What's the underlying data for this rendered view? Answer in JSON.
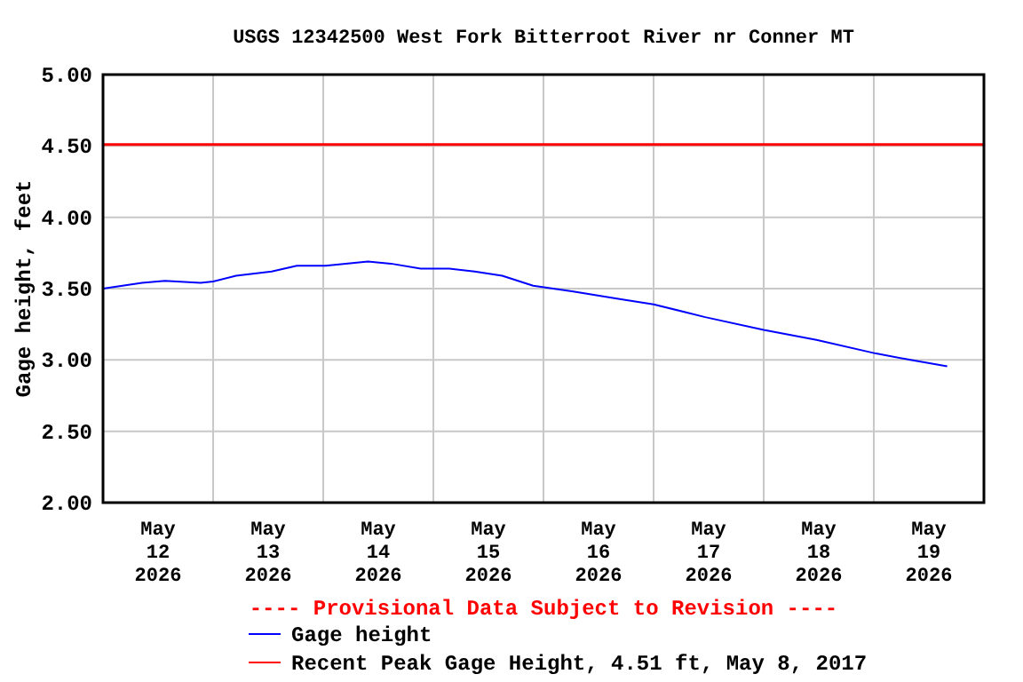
{
  "chart_data": {
    "type": "line",
    "title": "USGS 12342500 West Fork Bitterroot River nr Conner MT",
    "ylabel": "Gage height, feet",
    "annotations": [
      "---- Provisional Data Subject to Revision ----"
    ],
    "xlim": [
      "2026-05-12T00:00",
      "2026-05-20T00:00"
    ],
    "xticks": [
      {
        "value": "2026-05-12T12:00",
        "label": "May\n12\n2026"
      },
      {
        "value": "2026-05-13T00:00",
        "label": null
      },
      {
        "value": "2026-05-13T12:00",
        "label": "May\n13\n2026"
      },
      {
        "value": "2026-05-14T00:00",
        "label": null
      },
      {
        "value": "2026-05-14T12:00",
        "label": "May\n14\n2026"
      },
      {
        "value": "2026-05-15T00:00",
        "label": null
      },
      {
        "value": "2026-05-15T12:00",
        "label": "May\n15\n2026"
      },
      {
        "value": "2026-05-16T00:00",
        "label": null
      },
      {
        "value": "2026-05-16T12:00",
        "label": "May\n16\n2026"
      },
      {
        "value": "2026-05-17T00:00",
        "label": null
      },
      {
        "value": "2026-05-17T12:00",
        "label": "May\n17\n2026"
      },
      {
        "value": "2026-05-18T00:00",
        "label": null
      },
      {
        "value": "2026-05-18T12:00",
        "label": "May\n18\n2026"
      },
      {
        "value": "2026-05-19T00:00",
        "label": null
      },
      {
        "value": "2026-05-19T12:00",
        "label": "May\n19\n2026"
      }
    ],
    "ylim": [
      2,
      5
    ],
    "yticks": [
      {
        "value": 2,
        "label": "2.00"
      },
      {
        "value": 2.5,
        "label": "2.50"
      },
      {
        "value": 3,
        "label": "3.00"
      },
      {
        "value": 3.5,
        "label": "3.50"
      },
      {
        "value": 4,
        "label": "4.00"
      },
      {
        "value": 4.5,
        "label": "4.50"
      },
      {
        "value": 5,
        "label": "5.00"
      }
    ],
    "grid": true,
    "legend": "bottom",
    "line_style": "solid",
    "marker": "none",
    "ref_lines": [
      {
        "axis": "y",
        "value": 4.51,
        "label": "Recent Peak Gage Height, 4.51 ft, May 8, 2017",
        "color": "#ff0000",
        "line_style": "solid"
      }
    ],
    "series": [
      {
        "name": "Gage height",
        "color": "#0000ff",
        "x": [
          "2026-05-12T00:00",
          "2026-05-12T08:30",
          "2026-05-12T13:30",
          "2026-05-12T21:15",
          "2026-05-13T00:00",
          "2026-05-13T05:00",
          "2026-05-13T12:45",
          "2026-05-13T18:15",
          "2026-05-14T00:30",
          "2026-05-14T09:45",
          "2026-05-14T14:45",
          "2026-05-14T21:15",
          "2026-05-15T03:30",
          "2026-05-15T09:00",
          "2026-05-15T15:00",
          "2026-05-15T21:45",
          "2026-05-16T06:30",
          "2026-05-16T16:00",
          "2026-05-17T00:00",
          "2026-05-17T11:15",
          "2026-05-18T00:00",
          "2026-05-18T11:30",
          "2026-05-19T00:30",
          "2026-05-19T08:00",
          "2026-05-19T16:00"
        ],
        "values": [
          3.5,
          3.54,
          3.555,
          3.54,
          3.55,
          3.59,
          3.62,
          3.66,
          3.66,
          3.69,
          3.675,
          3.64,
          3.64,
          3.62,
          3.59,
          3.52,
          3.48,
          3.43,
          3.39,
          3.3,
          3.21,
          3.14,
          3.045,
          3.0,
          2.955
        ]
      }
    ]
  }
}
